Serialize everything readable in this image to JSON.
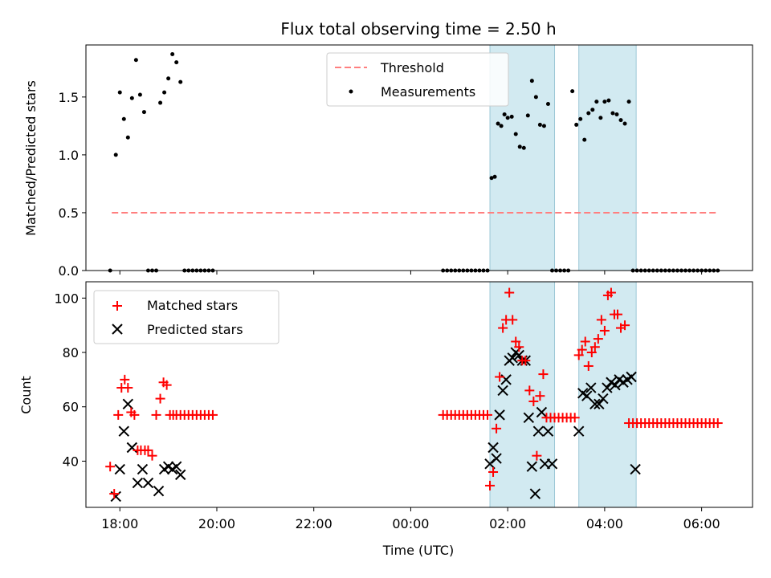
{
  "chart_data": [
    {
      "type": "scatter",
      "title": "Flux total observing time = 2.50 h",
      "ylabel": "Matched/Predicted stars",
      "ylim": [
        0,
        1.95
      ],
      "yticks": [
        0.0,
        0.5,
        1.0,
        1.5
      ],
      "ytick_labels": [
        "0.0",
        "0.5",
        "1.0",
        "1.5"
      ],
      "xlim_hours": [
        17.3,
        31.05
      ],
      "grid": false,
      "legend_position": "top-center",
      "shaded_intervals": [
        {
          "start": "01:38",
          "end": "02:58"
        },
        {
          "start": "03:28",
          "end": "04:39"
        }
      ],
      "colors": {
        "measurements": "#000000",
        "threshold": "#ff7f7f",
        "shade": "#add8e6"
      },
      "series": [
        {
          "name": "Threshold",
          "style": "dashed-line",
          "x": [
            "17:50",
            "06:20"
          ],
          "y": [
            0.5,
            0.5
          ]
        },
        {
          "name": "Measurements",
          "style": "dots",
          "x": [
            "17:48",
            "17:55",
            "18:00",
            "18:05",
            "18:10",
            "18:15",
            "18:20",
            "18:25",
            "18:30",
            "18:35",
            "18:40",
            "18:45",
            "18:50",
            "18:55",
            "19:00",
            "19:05",
            "19:10",
            "19:15",
            "19:20",
            "19:25",
            "19:30",
            "19:35",
            "19:40",
            "19:45",
            "19:50",
            "19:55",
            "00:40",
            "00:45",
            "00:50",
            "00:55",
            "01:00",
            "01:05",
            "01:10",
            "01:15",
            "01:20",
            "01:25",
            "01:30",
            "01:35",
            "01:40",
            "01:44",
            "01:48",
            "01:52",
            "01:56",
            "02:00",
            "02:05",
            "02:10",
            "02:15",
            "02:20",
            "02:25",
            "02:30",
            "02:35",
            "02:40",
            "02:45",
            "02:50",
            "02:55",
            "03:00",
            "03:05",
            "03:10",
            "03:15",
            "03:20",
            "03:25",
            "03:30",
            "03:35",
            "03:40",
            "03:45",
            "03:50",
            "03:55",
            "04:00",
            "04:05",
            "04:10",
            "04:15",
            "04:20",
            "04:25",
            "04:30",
            "04:35",
            "04:40",
            "04:45",
            "04:50",
            "04:55",
            "05:00",
            "05:05",
            "05:10",
            "05:15",
            "05:20",
            "05:25",
            "05:30",
            "05:35",
            "05:40",
            "05:45",
            "05:50",
            "05:55",
            "06:00",
            "06:05",
            "06:10",
            "06:15",
            "06:20"
          ],
          "y": [
            0,
            1.0,
            1.54,
            1.31,
            1.15,
            1.49,
            1.82,
            1.52,
            1.37,
            0,
            0,
            0,
            1.45,
            1.54,
            1.66,
            1.87,
            1.8,
            1.63,
            0,
            0,
            0,
            0,
            0,
            0,
            0,
            0,
            0,
            0,
            0,
            0,
            0,
            0,
            0,
            0,
            0,
            0,
            0,
            0,
            0.8,
            0.81,
            1.27,
            1.25,
            1.35,
            1.32,
            1.33,
            1.18,
            1.07,
            1.06,
            1.34,
            1.64,
            1.5,
            1.26,
            1.25,
            1.44,
            0,
            0,
            0,
            0,
            0,
            1.55,
            1.26,
            1.31,
            1.13,
            1.36,
            1.39,
            1.46,
            1.32,
            1.46,
            1.47,
            1.36,
            1.35,
            1.3,
            1.27,
            1.46,
            0,
            0,
            0,
            0,
            0,
            0,
            0,
            0,
            0,
            0,
            0,
            0,
            0,
            0,
            0,
            0,
            0,
            0,
            0,
            0,
            0,
            0
          ]
        }
      ]
    },
    {
      "type": "scatter",
      "xlabel": "Time (UTC)",
      "ylabel": "Count",
      "ylim": [
        23,
        106
      ],
      "yticks": [
        40,
        60,
        80,
        100
      ],
      "ytick_labels": [
        "40",
        "60",
        "80",
        "100"
      ],
      "xlim_hours": [
        17.3,
        31.05
      ],
      "xticks": [
        "18:00",
        "20:00",
        "22:00",
        "00:00",
        "02:00",
        "04:00",
        "06:00"
      ],
      "grid": false,
      "legend_position": "top-left",
      "shaded_intervals": [
        {
          "start": "01:38",
          "end": "02:58"
        },
        {
          "start": "03:28",
          "end": "04:39"
        }
      ],
      "colors": {
        "matched": "#ff0000",
        "predicted": "#000000",
        "shade": "#add8e6"
      },
      "series": [
        {
          "name": "Matched stars",
          "marker": "plus",
          "x": [
            "17:48",
            "17:53",
            "17:58",
            "18:02",
            "18:06",
            "18:10",
            "18:14",
            "18:18",
            "18:22",
            "18:26",
            "18:31",
            "18:35",
            "18:40",
            "18:45",
            "18:50",
            "18:54",
            "18:58",
            "19:02",
            "19:06",
            "19:10",
            "19:15",
            "19:20",
            "19:25",
            "19:30",
            "19:35",
            "19:40",
            "19:45",
            "19:50",
            "19:55",
            "00:40",
            "00:45",
            "00:50",
            "00:55",
            "01:00",
            "01:05",
            "01:10",
            "01:15",
            "01:20",
            "01:25",
            "01:30",
            "01:35",
            "01:38",
            "01:42",
            "01:46",
            "01:50",
            "01:54",
            "01:58",
            "02:02",
            "02:06",
            "02:10",
            "02:14",
            "02:18",
            "02:22",
            "02:27",
            "02:32",
            "02:36",
            "02:40",
            "02:44",
            "02:48",
            "02:53",
            "02:58",
            "03:03",
            "03:08",
            "03:13",
            "03:18",
            "03:23",
            "03:28",
            "03:32",
            "03:36",
            "03:40",
            "03:44",
            "03:48",
            "03:52",
            "03:56",
            "04:00",
            "04:04",
            "04:08",
            "04:12",
            "04:16",
            "04:20",
            "04:25",
            "04:30",
            "04:35",
            "04:40",
            "04:45",
            "04:50",
            "04:55",
            "05:00",
            "05:05",
            "05:10",
            "05:15",
            "05:20",
            "05:25",
            "05:30",
            "05:35",
            "05:40",
            "05:45",
            "05:50",
            "05:55",
            "06:00",
            "06:05",
            "06:10",
            "06:15",
            "06:20"
          ],
          "y": [
            38,
            28,
            57,
            67,
            70,
            67,
            58,
            57,
            44,
            44,
            44,
            44,
            42,
            57,
            63,
            69,
            68,
            57,
            57,
            57,
            57,
            57,
            57,
            57,
            57,
            57,
            57,
            57,
            57,
            57,
            57,
            57,
            57,
            57,
            57,
            57,
            57,
            57,
            57,
            57,
            57,
            31,
            36,
            52,
            71,
            89,
            92,
            102,
            92,
            84,
            82,
            77,
            77,
            66,
            62,
            42,
            64,
            72,
            56,
            56,
            56,
            56,
            56,
            56,
            56,
            56,
            79,
            81,
            84,
            75,
            80,
            82,
            85,
            92,
            88,
            101,
            102,
            94,
            94,
            89,
            90,
            54,
            54,
            54,
            54,
            54,
            54,
            54,
            54,
            54,
            54,
            54,
            54,
            54,
            54,
            54,
            54,
            54,
            54,
            54,
            54,
            54,
            54,
            54
          ]
        },
        {
          "name": "Predicted stars",
          "marker": "x",
          "x": [
            "17:55",
            "18:00",
            "18:05",
            "18:10",
            "18:15",
            "18:22",
            "18:28",
            "18:35",
            "18:48",
            "18:55",
            "19:00",
            "19:05",
            "19:10",
            "19:15",
            "01:38",
            "01:42",
            "01:46",
            "01:50",
            "01:54",
            "01:58",
            "02:02",
            "02:06",
            "02:10",
            "02:14",
            "02:18",
            "02:22",
            "02:26",
            "02:30",
            "02:34",
            "02:38",
            "02:42",
            "02:46",
            "02:50",
            "02:55",
            "03:28",
            "03:33",
            "03:38",
            "03:43",
            "03:48",
            "03:53",
            "03:58",
            "04:03",
            "04:08",
            "04:13",
            "04:18",
            "04:23",
            "04:28",
            "04:33",
            "04:38"
          ],
          "y": [
            27,
            37,
            51,
            61,
            45,
            32,
            37,
            32,
            29,
            37,
            38,
            37,
            38,
            35,
            39,
            45,
            41,
            57,
            66,
            70,
            77,
            78,
            80,
            79,
            77,
            77,
            56,
            38,
            28,
            51,
            58,
            39,
            51,
            39,
            51,
            65,
            64,
            67,
            61,
            61,
            63,
            67,
            69,
            68,
            70,
            69,
            70,
            71,
            37
          ]
        }
      ]
    }
  ]
}
